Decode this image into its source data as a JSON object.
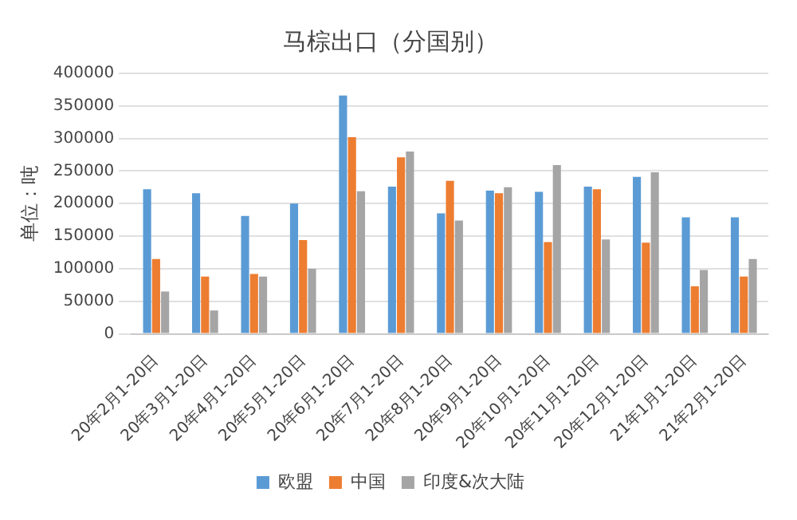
{
  "chart_data": {
    "type": "bar",
    "title": "马棕出口（分国别）",
    "ylabel": "单位：吨",
    "categories": [
      "20年2月1-20日",
      "20年3月1-20日",
      "20年4月1-20日",
      "20年5月1-20日",
      "20年6月1-20日",
      "20年7月1-20日",
      "20年8月1-20日",
      "20年9月1-20日",
      "20年10月1-20日",
      "20年11月1-20日",
      "20年12月1-20日",
      "21年1月1-20日",
      "21年2月1-20日"
    ],
    "series": [
      {
        "name": "欧盟",
        "color": "#5b9bd5",
        "values": [
          222000,
          216000,
          181000,
          200000,
          366000,
          226000,
          185000,
          220000,
          218000,
          226000,
          241000,
          179000,
          179000
        ]
      },
      {
        "name": "中国",
        "color": "#ed7d31",
        "values": [
          115000,
          88000,
          92000,
          144000,
          302000,
          271000,
          235000,
          216000,
          141000,
          222000,
          140000,
          73000,
          88000
        ]
      },
      {
        "name": "印度&次大陆",
        "color": "#a5a5a5",
        "values": [
          65000,
          36000,
          88000,
          100000,
          219000,
          280000,
          174000,
          225000,
          259000,
          145000,
          248000,
          98000,
          115000
        ]
      }
    ],
    "ylim": [
      0,
      400000
    ],
    "yticks": [
      0,
      50000,
      100000,
      150000,
      200000,
      250000,
      300000,
      350000,
      400000
    ],
    "grid": "y",
    "legend": "bottom"
  }
}
